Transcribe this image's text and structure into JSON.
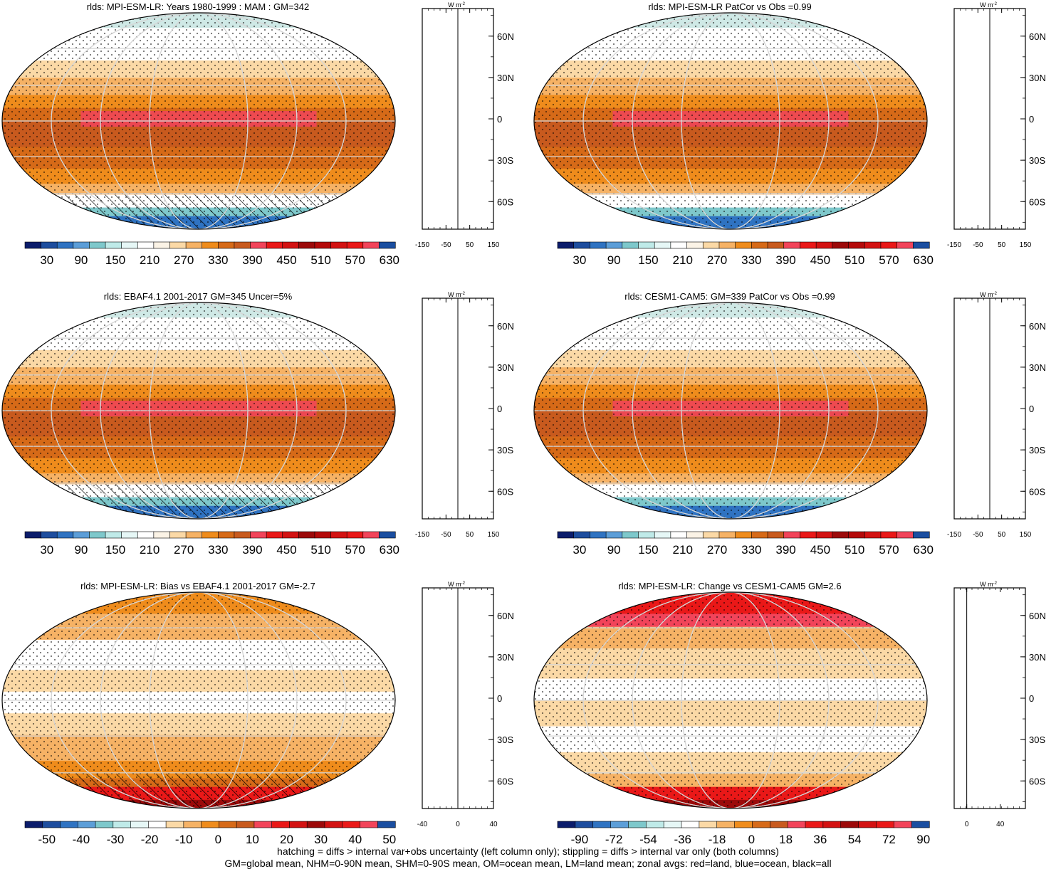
{
  "colors": {
    "abs_scale": [
      "#0b1c6b",
      "#1d4d9e",
      "#2f73c2",
      "#5c9ed8",
      "#7ec8cb",
      "#bfeae8",
      "#e6f7f6",
      "#ffffff",
      "#fbf3e6",
      "#fbd9a6",
      "#f6b265",
      "#ef8c1c",
      "#d66a18",
      "#c85a1e",
      "#f2445a",
      "#ea1818",
      "#d31212",
      "#9c0a0a",
      "#b40a0a",
      "#d31212",
      "#ea1818",
      "#f2445a",
      "#1a4ea0"
    ],
    "diff_scale_left": [
      "#0b1c6b",
      "#1d4d9e",
      "#2f73c2",
      "#5c9ed8",
      "#7ec8cb",
      "#bfeae8",
      "#e6f7f6",
      "#ffffff",
      "#fbd9a6",
      "#f6b265",
      "#ef8c1c",
      "#d66a18",
      "#c85a1e",
      "#f2445a",
      "#ea1818",
      "#d31212",
      "#9c0a0a",
      "#d31212",
      "#ea1818",
      "#f2445a",
      "#1a4ea0"
    ],
    "diff_scale_right": [
      "#0b1c6b",
      "#1d4d9e",
      "#2f73c2",
      "#5c9ed8",
      "#7ec8cb",
      "#bfeae8",
      "#e6f7f6",
      "#ffffff",
      "#fbd9a6",
      "#f6b265",
      "#ef8c1c",
      "#d66a18",
      "#c85a1e",
      "#f2445a",
      "#ea1818",
      "#d31212",
      "#9c0a0a",
      "#d31212",
      "#ea1818",
      "#f2445a",
      "#1a4ea0"
    ],
    "land_line": "#e8141e",
    "ocean_line": "#1414e8",
    "all_line": "#000000"
  },
  "chart_data": [
    {
      "type": "heatmap",
      "title": "rlds: MPI-ESM-LR: Years 1980-1999 : MAM : GM=342",
      "colorbar_ticks": [
        "30",
        "90",
        "150",
        "210",
        "270",
        "330",
        "390",
        "450",
        "510",
        "570",
        "630"
      ],
      "zonal": {
        "xticks": [
          "-150",
          "-50",
          "50",
          "150"
        ],
        "xlim": [
          -150,
          150
        ],
        "unit": "W m",
        "unit_sup": "-2",
        "yticks": [
          "60N",
          "30N",
          "0",
          "30S",
          "60S"
        ]
      }
    },
    {
      "type": "heatmap",
      "title": "rlds: MPI-ESM-LR PatCor vs Obs =0.99",
      "colorbar_ticks": [
        "30",
        "90",
        "150",
        "210",
        "270",
        "330",
        "390",
        "450",
        "510",
        "570",
        "630"
      ],
      "zonal": {
        "xticks": [
          "-150",
          "-50",
          "50",
          "150"
        ],
        "xlim": [
          -150,
          150
        ],
        "unit": "W m",
        "unit_sup": "-2",
        "yticks": [
          "60N",
          "30N",
          "0",
          "30S",
          "60S"
        ]
      }
    },
    {
      "type": "heatmap",
      "title": "rlds: EBAF4.1 2001-2017 GM=345 Uncer=5%",
      "colorbar_ticks": [
        "30",
        "90",
        "150",
        "210",
        "270",
        "330",
        "390",
        "450",
        "510",
        "570",
        "630"
      ],
      "zonal": {
        "xticks": [
          "-150",
          "-50",
          "50",
          "150"
        ],
        "xlim": [
          -150,
          150
        ],
        "unit": "W m",
        "unit_sup": "-2",
        "yticks": [
          "60N",
          "30N",
          "0",
          "30S",
          "60S"
        ]
      }
    },
    {
      "type": "heatmap",
      "title": "rlds: CESM1-CAM5: GM=339 PatCor vs Obs =0.99",
      "colorbar_ticks": [
        "30",
        "90",
        "150",
        "210",
        "270",
        "330",
        "390",
        "450",
        "510",
        "570",
        "630"
      ],
      "zonal": {
        "xticks": [
          "-150",
          "-50",
          "50",
          "150"
        ],
        "xlim": [
          -150,
          150
        ],
        "unit": "W m",
        "unit_sup": "-2",
        "yticks": [
          "60N",
          "30N",
          "0",
          "30S",
          "60S"
        ]
      }
    },
    {
      "type": "heatmap",
      "title": "rlds: MPI-ESM-LR: Bias vs EBAF4.1 2001-2017 GM=-2.7",
      "colorbar_ticks": [
        "-50",
        "-40",
        "-30",
        "-20",
        "-10",
        "0",
        "10",
        "20",
        "30",
        "40",
        "50"
      ],
      "zonal": {
        "xticks": [
          "-40",
          "0",
          "40"
        ],
        "xlim": [
          -40,
          40
        ],
        "unit": "W m",
        "unit_sup": "-2",
        "yticks": [
          "60N",
          "30N",
          "0",
          "30S",
          "60S"
        ]
      }
    },
    {
      "type": "heatmap",
      "title": "rlds: MPI-ESM-LR: Change vs CESM1-CAM5 GM=2.6",
      "colorbar_ticks": [
        "-90",
        "-72",
        "-54",
        "-36",
        "-18",
        "0",
        "18",
        "36",
        "54",
        "72",
        "90"
      ],
      "zonal": {
        "xticks": [
          "0",
          "40"
        ],
        "xlim": [
          -15,
          70
        ],
        "unit": "W m",
        "unit_sup": "-2",
        "yticks": [
          "60N",
          "30N",
          "0",
          "30S",
          "60S"
        ]
      }
    }
  ],
  "footer": {
    "line1": "hatching = diffs > internal var+obs uncertainty (left column only); stippling = diffs > internal var only (both columns)",
    "line2": "GM=global mean, NHM=0-90N mean, SHM=0-90S mean, OM=ocean mean, LM=land mean; zonal avgs: red=land, blue=ocean, black=all"
  }
}
